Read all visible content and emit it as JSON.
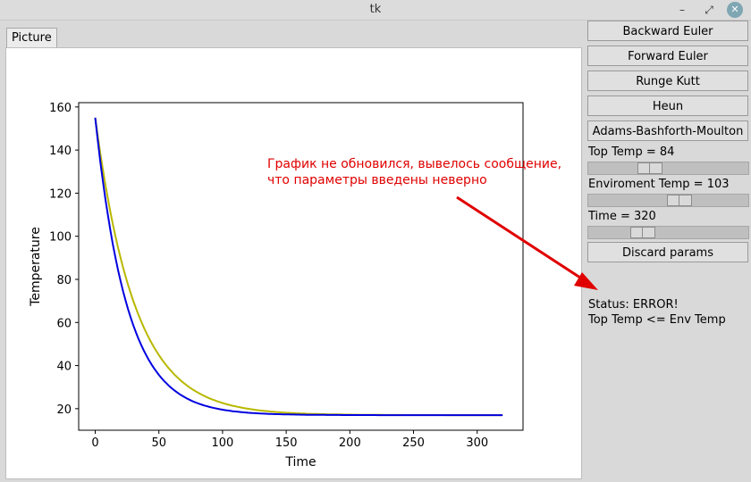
{
  "window": {
    "title": "tk",
    "minimize_icon": "minimize-icon",
    "restore_icon": "restore-icon",
    "close_icon": "close-icon"
  },
  "tabs": [
    {
      "label": "Picture"
    }
  ],
  "buttons": {
    "backward_euler": "Backward Euler",
    "forward_euler": "Forward Euler",
    "runge_kutta": "Runge Kutt",
    "heun": "Heun",
    "adams": "Adams-Bashforth-Moulton",
    "discard": "Discard params"
  },
  "params": {
    "top_temp": {
      "label": "Top Temp = 84",
      "value": 84
    },
    "env_temp": {
      "label": "Enviroment Temp = 103",
      "value": 103
    },
    "time": {
      "label": "Time = 320",
      "value": 320
    }
  },
  "status": {
    "line1": "Status: ERROR!",
    "line2": "Top Temp <= Env Temp"
  },
  "annotation": {
    "line1": "График не обновился, вывелось сообщение,",
    "line2": "что параметры введены неверно",
    "color": "#e00000"
  },
  "chart_data": {
    "type": "line",
    "xlabel": "Time",
    "ylabel": "Temperature",
    "xlim": [
      -13,
      336
    ],
    "ylim": [
      10,
      162
    ],
    "xticks": [
      0,
      50,
      100,
      150,
      200,
      250,
      300
    ],
    "yticks": [
      20,
      40,
      60,
      80,
      100,
      120,
      140,
      160
    ],
    "series": [
      {
        "color": "#b8b800",
        "model": {
          "T0": 155,
          "Tenv": 17,
          "k": 0.032
        },
        "t_end": 320
      },
      {
        "color": "#0000e0",
        "model": {
          "T0": 155,
          "Tenv": 17,
          "k": 0.04
        },
        "t_end": 320
      }
    ]
  }
}
